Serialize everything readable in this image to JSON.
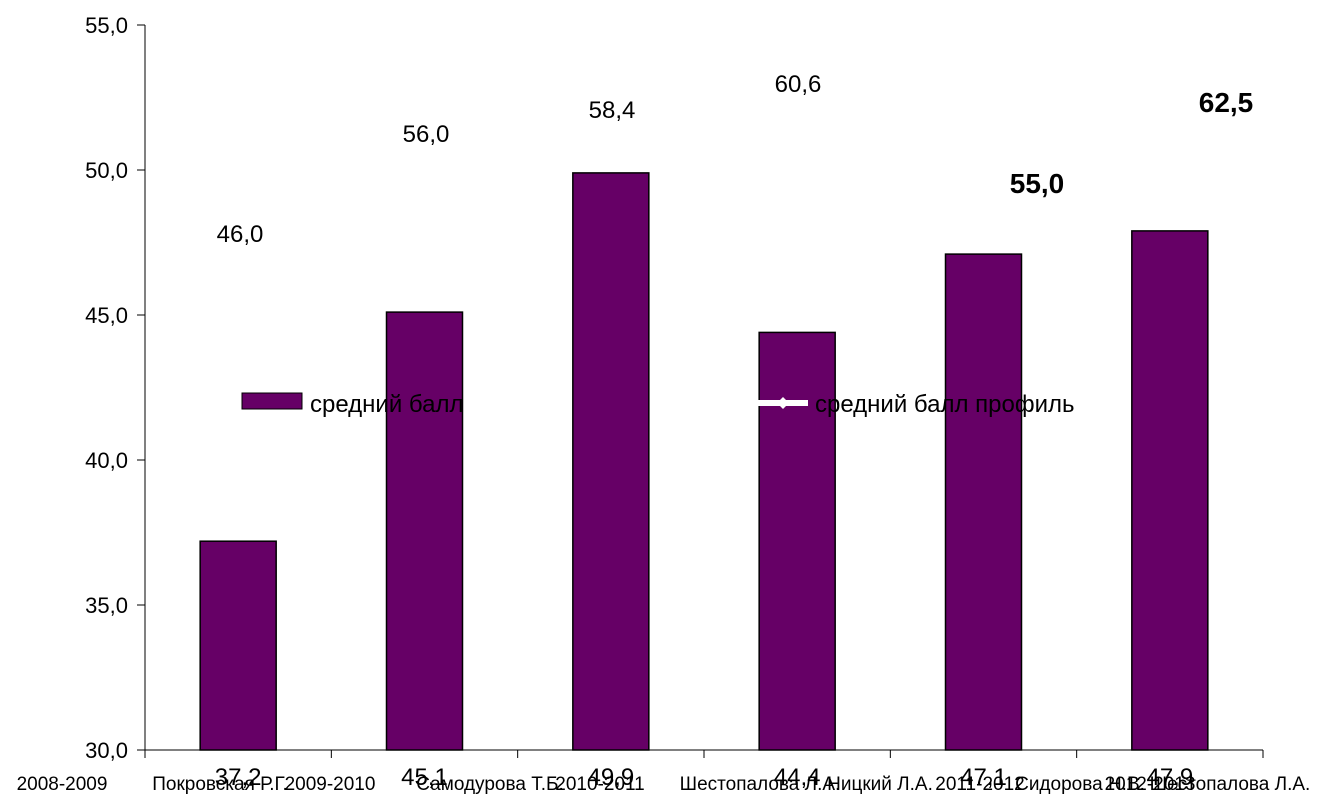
{
  "chart_data": {
    "type": "bar",
    "ylim": [
      30,
      55
    ],
    "yticks": [
      "55,0",
      "50,0",
      "45,0",
      "40,0",
      "35,0",
      "30,0"
    ],
    "ytick_values": [
      55,
      50,
      45,
      40,
      35,
      30
    ],
    "categories": [
      "2008-2009",
      "Покровская Р.Г.",
      "2009-2010",
      "Самодурова Т.Б.",
      "2010-2011",
      "Шестопалова Л.А."
    ],
    "series": [
      {
        "name": "средний балл",
        "type": "bar",
        "color": "#660066",
        "values": [
          37.2,
          45.1,
          49.9,
          44.4,
          47.1,
          47.9
        ],
        "labels": [
          "37,2",
          "45,1",
          "49,9",
          "44,4",
          "47,1",
          "47,9"
        ]
      },
      {
        "name": "средний балл профиль",
        "type": "line",
        "color": "#ffffff",
        "values": [
          46.0,
          56.0,
          58.4,
          60.6,
          55.0,
          62.5
        ],
        "labels": [
          "46,0",
          "56,0",
          "58,4",
          "60,6",
          "55,0",
          "62,5"
        ],
        "bold": [
          false,
          false,
          false,
          false,
          true,
          true
        ]
      }
    ],
    "legend": [
      "средний балл",
      "средний балл профиль"
    ]
  }
}
